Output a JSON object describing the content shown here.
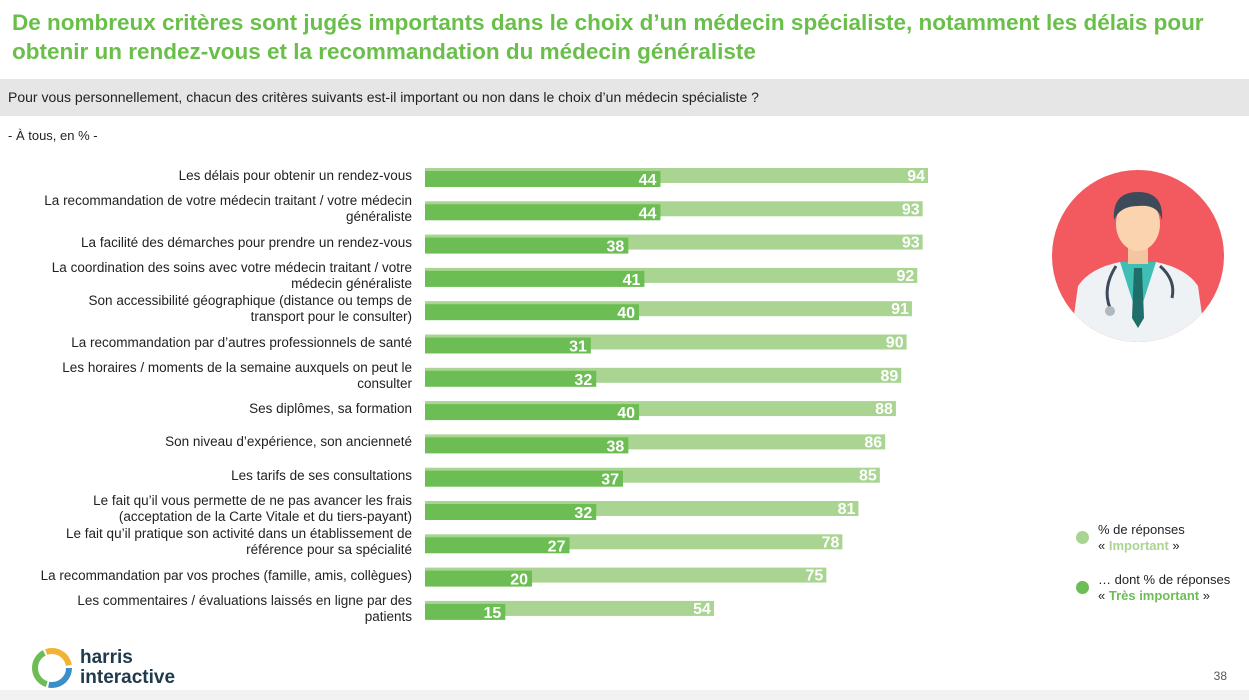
{
  "title": "De nombreux critères sont jugés importants dans le choix d’un médecin spécialiste, notamment les délais pour obtenir un rendez-vous et la recommandation du médecin généraliste",
  "question": "Pour vous personnellement, chacun des critères suivants est-il important ou non dans le choix d’un médecin spécialiste ?",
  "base": "- À tous, en % -",
  "page_number": "38",
  "logo": {
    "line1": "harris",
    "line2": "interactive"
  },
  "colors": {
    "important": "#a9d491",
    "tres_important": "#6dbd55",
    "title": "#6abf4b",
    "circle": "#f25a60"
  },
  "legend": [
    {
      "prefix": "% de réponses",
      "open": "« ",
      "key": "Important",
      "close": " »"
    },
    {
      "prefix": "… dont % de réponses",
      "open": "« ",
      "key": "Très important",
      "close": " »"
    }
  ],
  "chart_data": {
    "type": "bar",
    "orientation": "horizontal",
    "categories": [
      "Les délais pour obtenir un rendez-vous",
      "La recommandation de votre médecin traitant / votre médecin généraliste",
      "La facilité des démarches pour prendre un rendez-vous",
      "La coordination des soins avec votre médecin traitant / votre médecin généraliste",
      "Son accessibilité géographique (distance ou temps de transport pour le consulter)",
      "La recommandation par d’autres professionnels de santé",
      "Les horaires / moments de la semaine auxquels on peut le consulter",
      "Ses diplômes, sa formation",
      "Son niveau d’expérience, son ancienneté",
      "Les tarifs de ses consultations",
      "Le fait qu’il vous permette de ne pas avancer les frais (acceptation de la Carte Vitale et du tiers-payant)",
      "Le fait qu’il pratique son activité dans un établissement de référence pour sa spécialité",
      "La recommandation par vos proches (famille, amis, collègues)",
      "Les commentaires / évaluations laissés en ligne par des patients"
    ],
    "series": [
      {
        "name": "% de réponses « Important »",
        "values": [
          94,
          93,
          93,
          92,
          91,
          90,
          89,
          88,
          86,
          85,
          81,
          78,
          75,
          54
        ]
      },
      {
        "name": "… dont % de réponses « Très important »",
        "values": [
          44,
          44,
          38,
          41,
          40,
          31,
          32,
          40,
          38,
          37,
          32,
          27,
          20,
          15
        ]
      }
    ],
    "xlim": [
      0,
      100
    ],
    "grid": false,
    "legend_position": "right"
  }
}
